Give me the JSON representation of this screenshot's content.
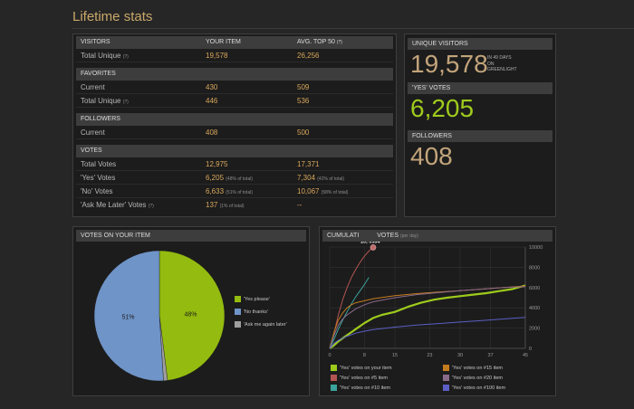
{
  "page": {
    "title": "Lifetime stats"
  },
  "stats_table": {
    "headers": {
      "visitors": "VISITORS",
      "your_item": "YOUR ITEM",
      "avg_top": "AVG. TOP 50",
      "avg_top_note": "(?)"
    },
    "visitors": {
      "label": "Total Unique",
      "note": "(?)",
      "yours": "19,578",
      "avg": "26,256"
    },
    "favorites": {
      "header": "FAVORITES",
      "current": {
        "label": "Current",
        "yours": "430",
        "avg": "509"
      },
      "total_unique": {
        "label": "Total Unique",
        "note": "(?)",
        "yours": "446",
        "avg": "536"
      }
    },
    "followers": {
      "header": "FOLLOWERS",
      "current": {
        "label": "Current",
        "yours": "408",
        "avg": "500"
      }
    },
    "votes": {
      "header": "VOTES",
      "total": {
        "label": "Total Votes",
        "yours": "12,975",
        "avg": "17,371"
      },
      "yes": {
        "label": "'Yes' Votes",
        "yours": "6,205",
        "yours_pct": "(48% of total)",
        "avg": "7,304",
        "avg_pct": "(42% of total)"
      },
      "no": {
        "label": "'No' Votes",
        "yours": "6,633",
        "yours_pct": "(51% of total)",
        "avg": "10,067",
        "avg_pct": "(58% of total)"
      },
      "ask": {
        "label": "'Ask Me Later' Votes",
        "note": "(?)",
        "yours": "137",
        "yours_pct": "(1% of total)",
        "avg": "--"
      }
    }
  },
  "summary": {
    "unique_visitors": {
      "header": "UNIQUE VISITORS",
      "value": "19,578",
      "note_line1": "IN 49 DAYS",
      "note_line2": "ON",
      "note_line3": "GREENLIGHT"
    },
    "yes_votes": {
      "header": "'YES' VOTES",
      "value": "6,205"
    },
    "followers": {
      "header": "FOLLOWERS",
      "value": "408"
    }
  },
  "pie_panel": {
    "header": "VOTES ON YOUR ITEM",
    "chart_data": {
      "type": "pie",
      "slices": [
        {
          "name": "'Yes please'",
          "value": 48,
          "label": "48%",
          "color": "#94bb0f"
        },
        {
          "name": "'Ask me again later'",
          "value": 1,
          "label": "",
          "color": "#9e9e9e"
        },
        {
          "name": "'No thanks'",
          "value": 51,
          "label": "51%",
          "color": "#6f94c8"
        }
      ]
    }
  },
  "line_panel": {
    "header": "CUMULATI",
    "header_tail": "VOTES",
    "header_sub": "(per day)",
    "tooltip": "10, 9964",
    "chart_data": {
      "type": "line",
      "xlim": [
        0,
        45
      ],
      "ylim": [
        0,
        10000
      ],
      "xticks": [
        "0",
        "8",
        "15",
        "23",
        "30",
        "37",
        "45"
      ],
      "yticks": [
        "0",
        "2000",
        "4000",
        "6000",
        "8000",
        "10000"
      ],
      "series": [
        {
          "name": "'Yes' votes on your item",
          "color": "#9ecb1c",
          "width": 2.2,
          "x": [
            0,
            1,
            2,
            3,
            4,
            5,
            6,
            8,
            10,
            12,
            15,
            18,
            21,
            24,
            27,
            30,
            33,
            36,
            39,
            42,
            45
          ],
          "y": [
            0,
            300,
            700,
            1000,
            1300,
            1600,
            1900,
            2500,
            3000,
            3300,
            3600,
            4100,
            4500,
            4800,
            5000,
            5150,
            5300,
            5450,
            5650,
            5850,
            6205
          ]
        },
        {
          "name": "'Yes' votes on #5 item",
          "color": "#b25552",
          "width": 1,
          "x": [
            0,
            1,
            2,
            3,
            4,
            5,
            6,
            7,
            8,
            9,
            10
          ],
          "y": [
            0,
            1500,
            3300,
            4800,
            6000,
            7000,
            7800,
            8500,
            9100,
            9600,
            9964
          ]
        },
        {
          "name": "'Yes' votes on #10 item",
          "color": "#3aa39b",
          "width": 1,
          "x": [
            0,
            1,
            2,
            3,
            4,
            5,
            6,
            7,
            8,
            9
          ],
          "y": [
            0,
            900,
            1900,
            2800,
            3600,
            4400,
            5100,
            5700,
            6300,
            7000
          ]
        },
        {
          "name": "'Yes' votes on #15 item",
          "color": "#c47b1e",
          "width": 1,
          "x": [
            0,
            1,
            2,
            3,
            4,
            5,
            6,
            8,
            10,
            15,
            20,
            25,
            30,
            35,
            40,
            45
          ],
          "y": [
            0,
            1600,
            2800,
            3500,
            4000,
            4300,
            4500,
            4700,
            4900,
            5200,
            5400,
            5550,
            5700,
            5850,
            6000,
            6150
          ]
        },
        {
          "name": "'Yes' votes on #20 item",
          "color": "#8a6a8a",
          "width": 1,
          "x": [
            0,
            1,
            2,
            3,
            4,
            5,
            6,
            8,
            10,
            15,
            20,
            25,
            30,
            35,
            40,
            45
          ],
          "y": [
            0,
            1300,
            2300,
            2900,
            3300,
            3600,
            3900,
            4300,
            4600,
            5000,
            5300,
            5500,
            5700,
            5850,
            6000,
            6100
          ]
        },
        {
          "name": "'Yes' votes on #100 item",
          "color": "#5b5fc6",
          "width": 1,
          "x": [
            0,
            1,
            2,
            4,
            6,
            8,
            10,
            15,
            20,
            25,
            30,
            35,
            40,
            45
          ],
          "y": [
            0,
            500,
            800,
            1200,
            1500,
            1700,
            1850,
            2100,
            2300,
            2450,
            2600,
            2750,
            2900,
            3050
          ]
        }
      ]
    }
  },
  "colors": {
    "accent": "#c9a86a",
    "green": "#9ecb1c",
    "tan": "#c2a47b"
  }
}
